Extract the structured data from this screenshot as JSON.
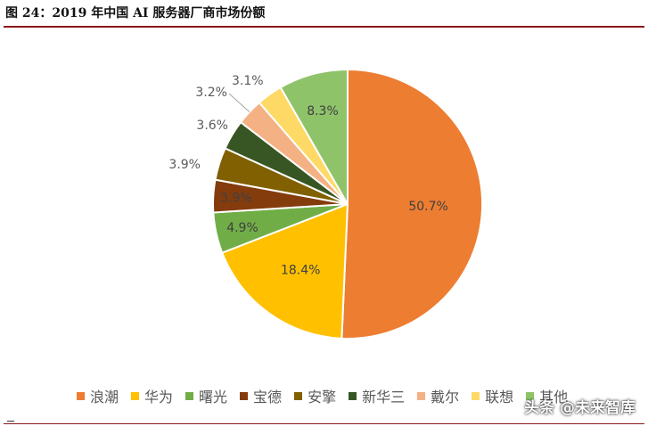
{
  "figure_title": "图 24：2019 年中国 AI 服务器厂商市场份额",
  "watermark": {
    "text": "头条 @未来智库"
  },
  "chart_data": {
    "type": "pie",
    "start_angle_deg": 0,
    "direction": "clockwise",
    "slices": [
      {
        "label": "浪潮",
        "value": 50.7,
        "text": "50.7%",
        "color": "#ed7d31"
      },
      {
        "label": "华为",
        "value": 18.4,
        "text": "18.4%",
        "color": "#ffc000"
      },
      {
        "label": "曙光",
        "value": 4.9,
        "text": "4.9%",
        "color": "#70ad47"
      },
      {
        "label": "宝德",
        "value": 3.9,
        "text": "3.9%",
        "color": "#843c0c"
      },
      {
        "label": "安擎",
        "value": 3.9,
        "text": "3.9%",
        "color": "#806000"
      },
      {
        "label": "新华三",
        "value": 3.6,
        "text": "3.6%",
        "color": "#375623"
      },
      {
        "label": "戴尔",
        "value": 3.2,
        "text": "3.2%",
        "color": "#f4b183"
      },
      {
        "label": "联想",
        "value": 3.1,
        "text": "3.1%",
        "color": "#ffd966"
      },
      {
        "label": "其他",
        "value": 8.3,
        "text": "8.3%",
        "color": "#8fc36a"
      }
    ],
    "legend_position": "bottom"
  }
}
